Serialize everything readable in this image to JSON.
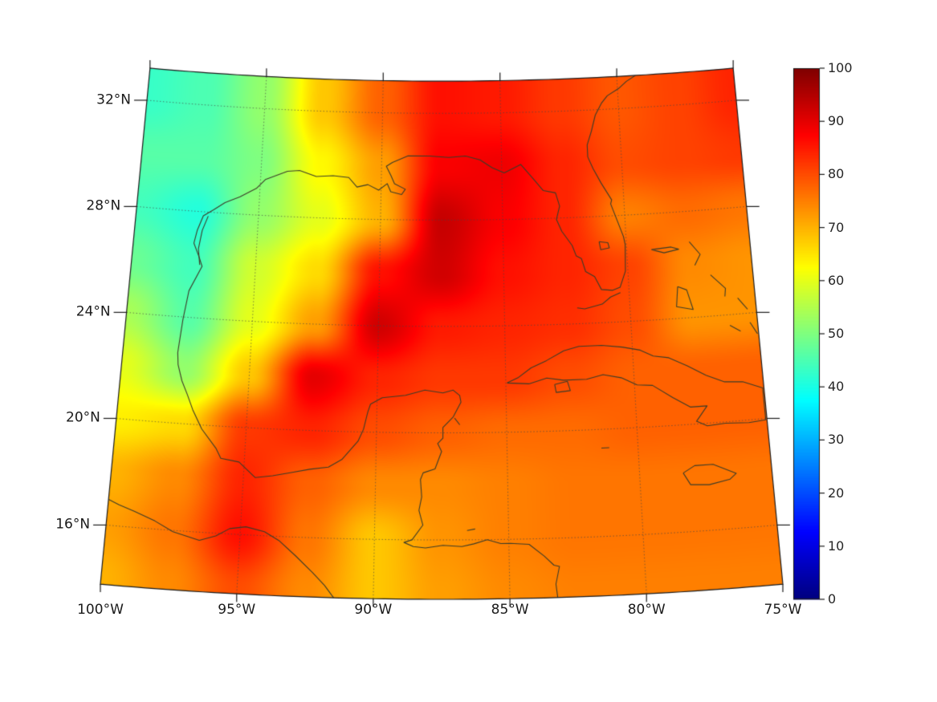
{
  "styles": {
    "background": "#ffffff",
    "coastline_color": "#3c3c28",
    "grid_color": "rgba(70,70,70,0.75)",
    "boundary_color": "#1a1a1a",
    "tick_color": "#1a1a1a",
    "label_color": "#1a1a1a"
  },
  "axes": {
    "x_ticks": [
      {
        "value": -100,
        "label": "100°W"
      },
      {
        "value": -95,
        "label": "95°W"
      },
      {
        "value": -90,
        "label": "90°W"
      },
      {
        "value": -85,
        "label": "85°W"
      },
      {
        "value": -80,
        "label": "80°W"
      },
      {
        "value": -75,
        "label": "75°W"
      }
    ],
    "y_ticks": [
      {
        "value": 32,
        "label": "32°N"
      },
      {
        "value": 28,
        "label": "28°N"
      },
      {
        "value": 24,
        "label": "24°N"
      },
      {
        "value": 20,
        "label": "20°N"
      },
      {
        "value": 16,
        "label": "16°N"
      }
    ]
  },
  "colorbar": {
    "min": 0,
    "max": 100,
    "colormap": "jet",
    "ticks": [
      100,
      90,
      80,
      70,
      60,
      50,
      40,
      30,
      20,
      10,
      0
    ]
  },
  "chart_data": {
    "type": "heatmap",
    "title": "",
    "colormap": "jet",
    "value_range": [
      0,
      100
    ],
    "projection": {
      "type": "lambert_conformal_conic",
      "central_longitude": -87.5,
      "standard_parallels": [
        20,
        30
      ]
    },
    "extent": {
      "lon_min": -100,
      "lon_max": -75,
      "lat_min": 13.8,
      "lat_max": 33.2
    },
    "gridlines": {
      "lats": [
        16,
        20,
        24,
        28,
        32
      ],
      "lons": [
        -95,
        -90,
        -85,
        -80
      ]
    },
    "grid": {
      "lons": [
        -100,
        -97.5,
        -95,
        -92.5,
        -90,
        -87.5,
        -85,
        -82.5,
        -80,
        -77.5,
        -75
      ],
      "lats": [
        34,
        32,
        30,
        28,
        26,
        24,
        22,
        20,
        18,
        16,
        14
      ],
      "values": [
        [
          43,
          45,
          52,
          68,
          78,
          86,
          85,
          82,
          79,
          81,
          84
        ],
        [
          43,
          45,
          52,
          68,
          78,
          86,
          85,
          82,
          79,
          81,
          84
        ],
        [
          46,
          46,
          50,
          63,
          72,
          88,
          89,
          84,
          80,
          81,
          82
        ],
        [
          44,
          41,
          52,
          60,
          70,
          93,
          88,
          84,
          75,
          77,
          76
        ],
        [
          48,
          44,
          58,
          66,
          86,
          92,
          86,
          84,
          81,
          74,
          73
        ],
        [
          54,
          46,
          60,
          72,
          92,
          85,
          84,
          83,
          80,
          73,
          73
        ],
        [
          60,
          52,
          68,
          90,
          84,
          82,
          82,
          80,
          78,
          78,
          78
        ],
        [
          64,
          66,
          82,
          84,
          80,
          78,
          77,
          77,
          78,
          78,
          78
        ],
        [
          70,
          74,
          84,
          78,
          74,
          74,
          75,
          76,
          76,
          76,
          76
        ],
        [
          72,
          76,
          86,
          76,
          68,
          73,
          75,
          76,
          76,
          76,
          76
        ],
        [
          70,
          74,
          80,
          74,
          68,
          72,
          74,
          75,
          75,
          75,
          75
        ]
      ]
    },
    "coastlines": {
      "atlantic_gulf_central_america": [
        [
          -79.2,
          33.2
        ],
        [
          -79.6,
          33.0
        ],
        [
          -79.95,
          32.75
        ],
        [
          -80.45,
          32.5
        ],
        [
          -80.7,
          32.25
        ],
        [
          -81.0,
          31.8
        ],
        [
          -81.2,
          31.2
        ],
        [
          -81.4,
          30.7
        ],
        [
          -81.4,
          30.25
        ],
        [
          -81.2,
          29.8
        ],
        [
          -80.9,
          29.25
        ],
        [
          -80.5,
          28.6
        ],
        [
          -80.55,
          28.45
        ],
        [
          -80.1,
          27.2
        ],
        [
          -80.05,
          26.9
        ],
        [
          -80.1,
          25.9
        ],
        [
          -80.35,
          25.3
        ],
        [
          -80.65,
          25.2
        ],
        [
          -81.1,
          25.25
        ],
        [
          -81.35,
          25.75
        ],
        [
          -81.7,
          25.95
        ],
        [
          -81.85,
          26.45
        ],
        [
          -82.05,
          26.55
        ],
        [
          -82.2,
          26.95
        ],
        [
          -82.6,
          27.5
        ],
        [
          -82.8,
          27.95
        ],
        [
          -82.65,
          28.45
        ],
        [
          -82.8,
          28.95
        ],
        [
          -83.3,
          29.05
        ],
        [
          -83.7,
          29.5
        ],
        [
          -84.2,
          30.05
        ],
        [
          -84.9,
          29.75
        ],
        [
          -85.4,
          29.95
        ],
        [
          -85.9,
          30.25
        ],
        [
          -86.5,
          30.4
        ],
        [
          -87.2,
          30.35
        ],
        [
          -88.0,
          30.4
        ],
        [
          -88.9,
          30.4
        ],
        [
          -89.55,
          30.15
        ],
        [
          -89.8,
          30.0
        ],
        [
          -89.6,
          29.65
        ],
        [
          -89.45,
          29.35
        ],
        [
          -89.0,
          29.15
        ],
        [
          -89.15,
          28.95
        ],
        [
          -89.6,
          29.05
        ],
        [
          -89.75,
          29.35
        ],
        [
          -90.1,
          29.1
        ],
        [
          -90.55,
          29.3
        ],
        [
          -91.0,
          29.2
        ],
        [
          -91.35,
          29.55
        ],
        [
          -92.0,
          29.6
        ],
        [
          -92.7,
          29.55
        ],
        [
          -93.4,
          29.75
        ],
        [
          -93.9,
          29.7
        ],
        [
          -94.8,
          29.35
        ],
        [
          -95.15,
          29.0
        ],
        [
          -95.8,
          28.65
        ],
        [
          -96.4,
          28.4
        ],
        [
          -96.85,
          28.1
        ],
        [
          -97.25,
          27.85
        ],
        [
          -97.45,
          27.3
        ],
        [
          -97.55,
          26.8
        ],
        [
          -97.3,
          26.3
        ],
        [
          -97.15,
          25.95
        ],
        [
          -97.6,
          25.0
        ],
        [
          -97.75,
          23.9
        ],
        [
          -97.85,
          22.65
        ],
        [
          -97.8,
          22.2
        ],
        [
          -97.6,
          21.6
        ],
        [
          -97.35,
          21.1
        ],
        [
          -97.1,
          20.55
        ],
        [
          -96.7,
          19.85
        ],
        [
          -96.1,
          19.15
        ],
        [
          -95.9,
          18.8
        ],
        [
          -95.2,
          18.7
        ],
        [
          -94.55,
          18.15
        ],
        [
          -93.9,
          18.25
        ],
        [
          -93.2,
          18.4
        ],
        [
          -92.5,
          18.55
        ],
        [
          -91.8,
          18.65
        ],
        [
          -91.3,
          18.95
        ],
        [
          -90.7,
          19.65
        ],
        [
          -90.5,
          20.1
        ],
        [
          -90.35,
          20.75
        ],
        [
          -90.25,
          21.05
        ],
        [
          -89.8,
          21.3
        ],
        [
          -88.9,
          21.4
        ],
        [
          -88.15,
          21.6
        ],
        [
          -87.45,
          21.5
        ],
        [
          -87.05,
          21.6
        ],
        [
          -86.8,
          21.4
        ],
        [
          -86.75,
          21.15
        ],
        [
          -87.05,
          20.6
        ],
        [
          -87.45,
          20.2
        ],
        [
          -87.45,
          19.8
        ],
        [
          -87.65,
          19.6
        ],
        [
          -87.5,
          19.3
        ],
        [
          -87.75,
          18.65
        ],
        [
          -88.2,
          18.5
        ],
        [
          -88.3,
          18.25
        ],
        [
          -88.25,
          17.6
        ],
        [
          -88.35,
          17.1
        ],
        [
          -88.2,
          16.55
        ],
        [
          -88.6,
          16.0
        ],
        [
          -88.9,
          15.9
        ],
        [
          -88.55,
          15.75
        ],
        [
          -88.1,
          15.7
        ],
        [
          -87.45,
          15.8
        ],
        [
          -86.75,
          15.75
        ],
        [
          -86.3,
          15.85
        ],
        [
          -85.8,
          16.0
        ],
        [
          -85.3,
          15.85
        ],
        [
          -84.95,
          15.85
        ],
        [
          -84.25,
          15.8
        ],
        [
          -83.7,
          15.35
        ],
        [
          -83.35,
          15.0
        ],
        [
          -83.15,
          14.95
        ],
        [
          -83.3,
          14.3
        ],
        [
          -83.25,
          13.8
        ]
      ],
      "pacific_mexico": [
        [
          -100.1,
          17.0
        ],
        [
          -99.6,
          16.8
        ],
        [
          -99.0,
          16.6
        ],
        [
          -98.2,
          16.3
        ],
        [
          -97.5,
          15.95
        ],
        [
          -96.5,
          15.7
        ],
        [
          -95.9,
          15.9
        ],
        [
          -95.4,
          16.2
        ],
        [
          -94.8,
          16.3
        ],
        [
          -94.1,
          16.15
        ],
        [
          -93.55,
          15.85
        ],
        [
          -92.9,
          15.3
        ],
        [
          -92.25,
          14.7
        ],
        [
          -91.8,
          14.25
        ],
        [
          -91.45,
          13.8
        ]
      ],
      "cuba": [
        [
          -84.95,
          21.85
        ],
        [
          -84.5,
          22.05
        ],
        [
          -84.0,
          22.4
        ],
        [
          -83.4,
          22.65
        ],
        [
          -82.7,
          23.0
        ],
        [
          -82.1,
          23.15
        ],
        [
          -81.2,
          23.15
        ],
        [
          -80.4,
          23.05
        ],
        [
          -79.7,
          22.9
        ],
        [
          -79.2,
          22.65
        ],
        [
          -78.6,
          22.55
        ],
        [
          -77.9,
          22.2
        ],
        [
          -77.2,
          21.8
        ],
        [
          -76.5,
          21.5
        ],
        [
          -75.8,
          21.45
        ],
        [
          -75.05,
          21.15
        ],
        [
          -75.05,
          19.95
        ],
        [
          -75.7,
          19.9
        ],
        [
          -76.6,
          19.95
        ],
        [
          -77.3,
          19.9
        ],
        [
          -77.7,
          20.1
        ],
        [
          -77.25,
          20.65
        ],
        [
          -77.9,
          20.65
        ],
        [
          -78.55,
          21.05
        ],
        [
          -79.3,
          21.55
        ],
        [
          -79.9,
          21.6
        ],
        [
          -80.5,
          21.9
        ],
        [
          -81.2,
          22.05
        ],
        [
          -81.85,
          21.9
        ],
        [
          -82.75,
          21.9
        ],
        [
          -83.4,
          22.0
        ],
        [
          -84.1,
          21.8
        ],
        [
          -84.95,
          21.85
        ]
      ],
      "isle_of_youth": [
        [
          -83.1,
          21.75
        ],
        [
          -82.6,
          21.85
        ],
        [
          -82.5,
          21.5
        ],
        [
          -83.05,
          21.45
        ],
        [
          -83.1,
          21.75
        ]
      ],
      "jamaica": [
        [
          -78.35,
          18.2
        ],
        [
          -77.9,
          18.45
        ],
        [
          -77.2,
          18.45
        ],
        [
          -76.35,
          18.05
        ],
        [
          -76.6,
          17.85
        ],
        [
          -77.4,
          17.7
        ],
        [
          -78.1,
          17.75
        ],
        [
          -78.35,
          18.2
        ]
      ],
      "florida_keys": [
        [
          -80.35,
          25.1
        ],
        [
          -80.75,
          24.95
        ],
        [
          -81.1,
          24.7
        ],
        [
          -81.8,
          24.55
        ],
        [
          -82.1,
          24.6
        ]
      ],
      "padre_island": [
        [
          -97.05,
          27.85
        ],
        [
          -97.25,
          27.3
        ],
        [
          -97.35,
          26.6
        ],
        [
          -97.25,
          26.0
        ]
      ],
      "grand_bahama": [
        [
          -79.0,
          26.65
        ],
        [
          -78.2,
          26.7
        ],
        [
          -77.9,
          26.6
        ],
        [
          -78.5,
          26.5
        ],
        [
          -79.0,
          26.65
        ]
      ],
      "abaco": [
        [
          -77.45,
          26.85
        ],
        [
          -77.05,
          26.35
        ],
        [
          -77.3,
          25.95
        ]
      ],
      "andros": [
        [
          -78.05,
          25.2
        ],
        [
          -77.7,
          25.05
        ],
        [
          -77.5,
          24.3
        ],
        [
          -78.15,
          24.45
        ],
        [
          -78.05,
          25.2
        ]
      ],
      "eleuthera": [
        [
          -76.7,
          25.55
        ],
        [
          -76.15,
          25.0
        ],
        [
          -76.2,
          24.7
        ]
      ],
      "long_island_bahamas": [
        [
          -75.3,
          23.65
        ],
        [
          -75.05,
          23.2
        ]
      ],
      "exuma": [
        [
          -76.1,
          23.6
        ],
        [
          -75.7,
          23.35
        ]
      ],
      "cat_island": [
        [
          -75.7,
          24.6
        ],
        [
          -75.35,
          24.15
        ]
      ],
      "grand_cayman": [
        [
          -81.4,
          19.3
        ],
        [
          -81.1,
          19.3
        ]
      ],
      "cozumel": [
        [
          -87.0,
          20.55
        ],
        [
          -86.8,
          20.3
        ]
      ],
      "roatan": [
        [
          -86.55,
          16.35
        ],
        [
          -86.25,
          16.4
        ]
      ],
      "lake_okeechobee": [
        [
          -81.1,
          27.05
        ],
        [
          -80.75,
          27.0
        ],
        [
          -80.7,
          26.8
        ],
        [
          -81.05,
          26.75
        ],
        [
          -81.1,
          27.05
        ]
      ]
    }
  }
}
